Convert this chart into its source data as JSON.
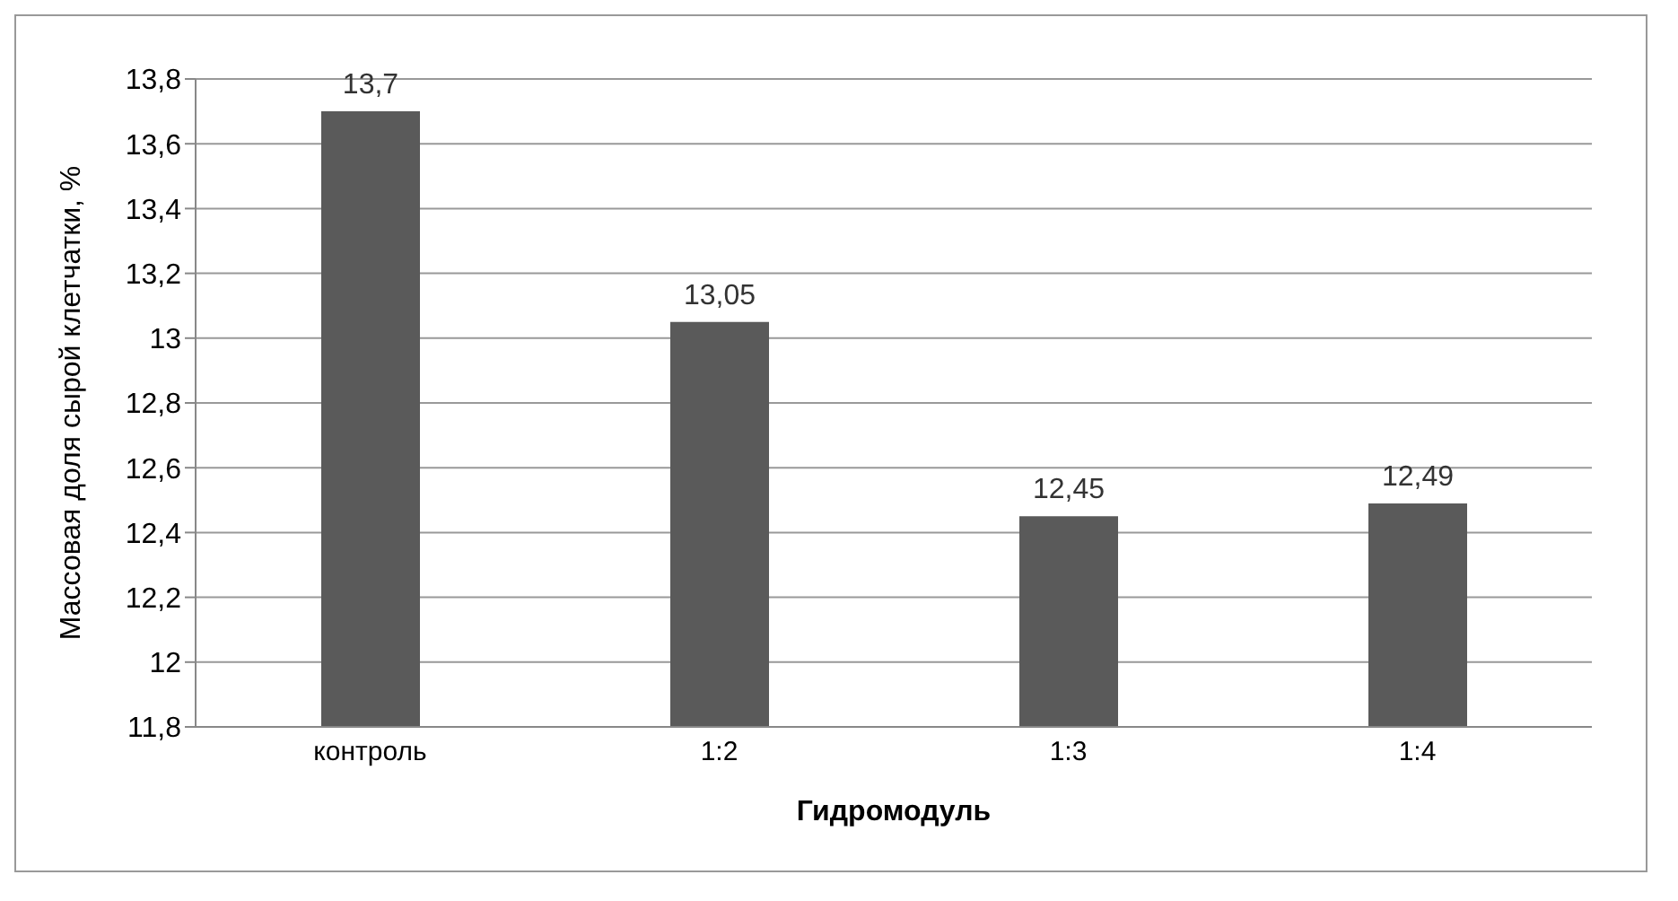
{
  "chart_data": {
    "type": "bar",
    "xlabel": "Гидромодуль",
    "ylabel": "Массовая доля сырой клетчатки, %",
    "categories": [
      "контроль",
      "1:2",
      "1:3",
      "1:4"
    ],
    "values": [
      13.7,
      13.05,
      12.45,
      12.49
    ],
    "value_labels": [
      "13,7",
      "13,05",
      "12,45",
      "12,49"
    ],
    "color": "#5a5a5a",
    "ylim": [
      11.8,
      13.8
    ],
    "yticks": [
      {
        "value": 11.8,
        "label": "11,8"
      },
      12,
      {
        "value": 12.2,
        "label": "12,2"
      },
      {
        "value": 12.4,
        "label": "12,4"
      },
      {
        "value": 12.6,
        "label": "12,6"
      },
      {
        "value": 12.8,
        "label": "12,8"
      },
      13,
      {
        "value": 13.2,
        "label": "13,2"
      },
      {
        "value": 13.4,
        "label": "13,4"
      },
      {
        "value": 13.6,
        "label": "13,6"
      },
      {
        "value": 13.8,
        "label": "13,8"
      }
    ],
    "grid": "y"
  }
}
